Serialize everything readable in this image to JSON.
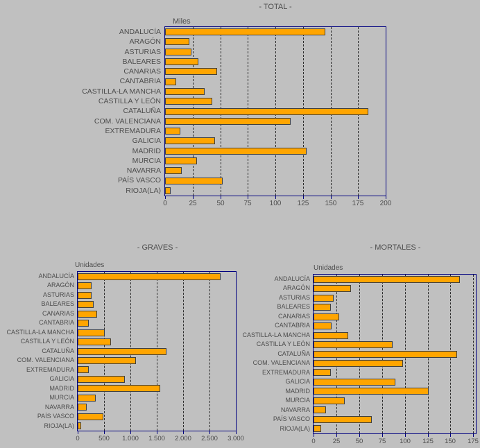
{
  "colors": {
    "background": "#C0C0C0",
    "bar_fill": "#FFA500",
    "bar_border": "#404040",
    "plot_border": "#000080",
    "gridline": "#2B2B2B",
    "text": "#4D4D4D"
  },
  "chart_data": [
    {
      "type": "bar",
      "orientation": "horizontal",
      "title": "- TOTAL -",
      "unit_label": "Miles",
      "grid": "vertical-dashed",
      "legend": "none",
      "categories": [
        "ANDALUCÍA",
        "ARAGÓN",
        "ASTURIAS",
        "BALEARES",
        "CANARIAS",
        "CANTABRIA",
        "CASTILLA-LA MANCHA",
        "CASTILLA Y LEÓN",
        "CATALUÑA",
        "COM. VALENCIANA",
        "EXTREMADURA",
        "GALICIA",
        "MADRID",
        "MURCIA",
        "NAVARRA",
        "PAÍS VASCO",
        "RIOJA(LA)"
      ],
      "values": [
        145,
        22,
        24,
        30,
        47,
        10,
        36,
        43,
        184,
        114,
        14,
        45,
        128,
        29,
        15,
        52,
        5
      ],
      "xlim": [
        0,
        200
      ],
      "xticks": [
        0,
        25,
        50,
        75,
        100,
        125,
        150,
        175,
        200
      ],
      "xtick_labels": [
        "0",
        "25",
        "50",
        "75",
        "100",
        "125",
        "150",
        "175",
        "200"
      ]
    },
    {
      "type": "bar",
      "orientation": "horizontal",
      "title": "- GRAVES -",
      "unit_label": "Unidades",
      "grid": "vertical-dashed",
      "legend": "none",
      "categories": [
        "ANDALUCÍA",
        "ARAGÓN",
        "ASTURIAS",
        "BALEARES",
        "CANARIAS",
        "CANTABRIA",
        "CASTILLA-LA MANCHA",
        "CASTILLA Y LEÓN",
        "CATALUÑA",
        "COM. VALENCIANA",
        "EXTREMADURA",
        "GALICIA",
        "MADRID",
        "MURCIA",
        "NAVARRA",
        "PAÍS VASCO",
        "RIOJA(LA)"
      ],
      "values": [
        2715,
        265,
        260,
        305,
        370,
        205,
        510,
        635,
        1690,
        1100,
        210,
        890,
        1570,
        340,
        170,
        490,
        60
      ],
      "xlim": [
        0,
        3000
      ],
      "xticks": [
        0,
        500,
        1000,
        1500,
        2000,
        2500,
        3000
      ],
      "xtick_labels": [
        "0",
        "500",
        "1.000",
        "1.500",
        "2.000",
        "2.500",
        "3.000"
      ]
    },
    {
      "type": "bar",
      "orientation": "horizontal",
      "title": "- MORTALES -",
      "unit_label": "Unidades",
      "grid": "vertical-dashed",
      "legend": "none",
      "categories": [
        "ANDALUCÍA",
        "ARAGÓN",
        "ASTURIAS",
        "BALEARES",
        "CANARIAS",
        "CANTABRIA",
        "CASTILLA-LA MANCHA",
        "CASTILLA Y LEÓN",
        "CATALUÑA",
        "COM. VALENCIANA",
        "EXTREMADURA",
        "GALICIA",
        "MADRID",
        "MURCIA",
        "NAVARRA",
        "PAÍS VASCO",
        "RIOJA(LA)"
      ],
      "values": [
        160,
        41,
        22,
        19,
        28,
        20,
        38,
        87,
        157,
        98,
        19,
        90,
        126,
        34,
        14,
        64,
        8
      ],
      "xlim": [
        0,
        175
      ],
      "xticks": [
        0,
        25,
        50,
        75,
        100,
        125,
        150,
        175
      ],
      "xtick_labels": [
        "0",
        "25",
        "50",
        "75",
        "100",
        "125",
        "150",
        "175"
      ]
    }
  ]
}
